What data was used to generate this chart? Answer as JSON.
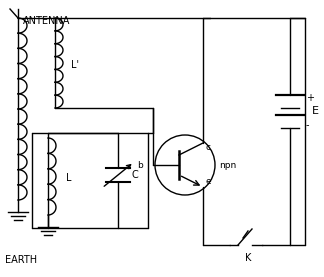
{
  "bg_color": "#ffffff",
  "line_color": "#000000",
  "text_color": "#000000",
  "antenna_label": "ANTENNA",
  "earth_label": "EARTH",
  "L_prime_label": "L'",
  "L_label": "L",
  "C_label": "C",
  "npn_label": "npn",
  "E_label": "E",
  "K_label": "K",
  "b_label": "b",
  "c_label": "c",
  "e_label": "e",
  "plus_label": "+",
  "minus_label": "-"
}
